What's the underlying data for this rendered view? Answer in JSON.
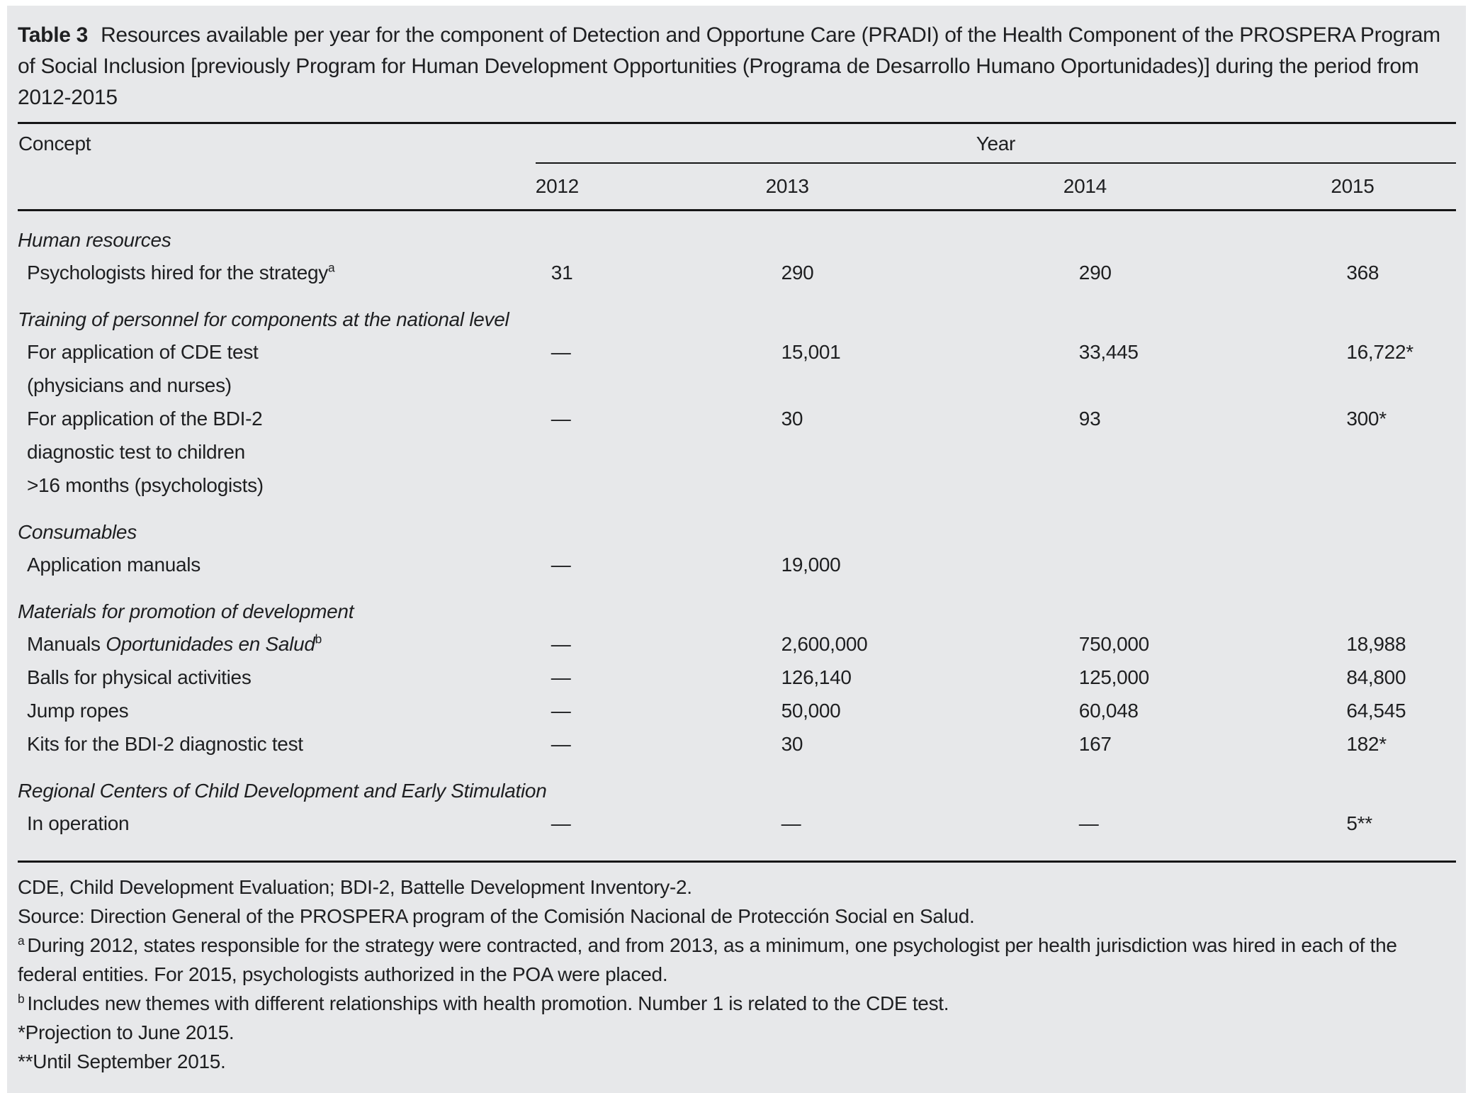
{
  "caption": {
    "label": "Table 3",
    "text": "Resources available per year for the component of Detection and Opportune Care (PRADI) of the Health Component of the PROSPERA Program of Social Inclusion [previously Program for Human Development Opportunities (Programa de Desarrollo Humano Oportunidades)] during the period from 2012-2015"
  },
  "table": {
    "concept_header": "Concept",
    "year_header": "Year",
    "years": [
      "2012",
      "2013",
      "2014",
      "2015"
    ],
    "rows": [
      {
        "type": "section",
        "label": "Human resources"
      },
      {
        "type": "data",
        "label": "Psychologists hired for the strategy",
        "sup": "a",
        "values": [
          "31",
          "290",
          "290",
          "368"
        ]
      },
      {
        "type": "section",
        "label": "Training of personnel for components at the national level"
      },
      {
        "type": "data",
        "label": "For application of CDE test",
        "values": [
          "—",
          "15,001",
          "33,445",
          "16,722*"
        ]
      },
      {
        "type": "cont",
        "label": "(physicians and nurses)"
      },
      {
        "type": "data",
        "label": "For application of the BDI-2",
        "values": [
          "—",
          "30",
          "93",
          "300*"
        ]
      },
      {
        "type": "cont",
        "label": "diagnostic test to children"
      },
      {
        "type": "cont",
        "label": ">16 months (psychologists)"
      },
      {
        "type": "section",
        "label": "Consumables"
      },
      {
        "type": "data",
        "label": "Application manuals",
        "values": [
          "—",
          "19,000",
          "",
          ""
        ]
      },
      {
        "type": "section",
        "label": "Materials for promotion of development"
      },
      {
        "type": "data",
        "label_prefix": "Manuals ",
        "label_italic": "Oportunidades en Salud",
        "sup": "b",
        "values": [
          "—",
          "2,600,000",
          "750,000",
          "18,988"
        ]
      },
      {
        "type": "data",
        "label": "Balls for physical activities",
        "values": [
          "—",
          "126,140",
          "125,000",
          "84,800"
        ]
      },
      {
        "type": "data",
        "label": "Jump ropes",
        "values": [
          "—",
          "50,000",
          "60,048",
          "64,545"
        ]
      },
      {
        "type": "data",
        "label": "Kits for the BDI-2 diagnostic test",
        "values": [
          "—",
          "30",
          "167",
          "182*"
        ]
      },
      {
        "type": "section",
        "label": "Regional Centers of Child Development and Early Stimulation"
      },
      {
        "type": "data",
        "label": "In operation",
        "values": [
          "—",
          "—",
          "—",
          "5**"
        ]
      }
    ]
  },
  "footnotes": [
    {
      "text": "CDE, Child Development Evaluation; BDI-2, Battelle Development Inventory-2."
    },
    {
      "text": "Source: Direction General of the PROSPERA program of the Comisión Nacional de Protección Social en Salud."
    },
    {
      "sup": "a",
      "text": "During 2012, states responsible for the strategy were contracted, and from 2013, as a minimum, one psychologist per health jurisdiction was hired in each of the federal entities. For 2015, psychologists authorized in the POA were placed."
    },
    {
      "sup": "b",
      "text": "Includes new themes with different relationships with health promotion. Number 1 is related to the CDE test."
    },
    {
      "text": "*Projection to June 2015."
    },
    {
      "text": "**Until September 2015."
    }
  ],
  "colors": {
    "panel_background": "#e7e8ea",
    "text": "#1e1f21",
    "rule": "#161617"
  }
}
